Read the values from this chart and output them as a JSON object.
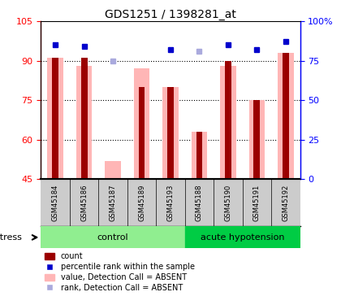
{
  "title": "GDS1251 / 1398281_at",
  "samples": [
    "GSM45184",
    "GSM45186",
    "GSM45187",
    "GSM45189",
    "GSM45193",
    "GSM45188",
    "GSM45190",
    "GSM45191",
    "GSM45192"
  ],
  "groups": {
    "control": [
      0,
      1,
      2,
      3,
      4
    ],
    "acute hypotension": [
      5,
      6,
      7,
      8
    ]
  },
  "ylim": [
    45,
    105
  ],
  "ylim_right": [
    0,
    100
  ],
  "yticks_left": [
    45,
    60,
    75,
    90,
    105
  ],
  "yticks_right": [
    0,
    25,
    50,
    75,
    100
  ],
  "ytick_labels_right": [
    "0",
    "25",
    "50",
    "75",
    "100%"
  ],
  "red_bars": [
    91,
    91,
    45,
    80,
    80,
    63,
    90,
    75,
    93
  ],
  "pink_bars": [
    91,
    88,
    52,
    87,
    80,
    63,
    88,
    75,
    93
  ],
  "blue_markers": [
    85,
    84,
    null,
    null,
    82,
    null,
    85,
    82,
    87
  ],
  "light_blue_markers": [
    null,
    null,
    75,
    null,
    null,
    81,
    null,
    null,
    null
  ],
  "bar_color_red": "#9B0000",
  "bar_color_pink": "#FFB6B6",
  "marker_color_blue": "#0000CC",
  "marker_color_light_blue": "#AAAADD",
  "grid_color": "#000000",
  "background_color": "#ffffff",
  "group_colors": {
    "control": "#90EE90",
    "acute hypotension": "#00BB00"
  },
  "stress_label": "stress",
  "xlabel_area_color": "#CCCCCC"
}
